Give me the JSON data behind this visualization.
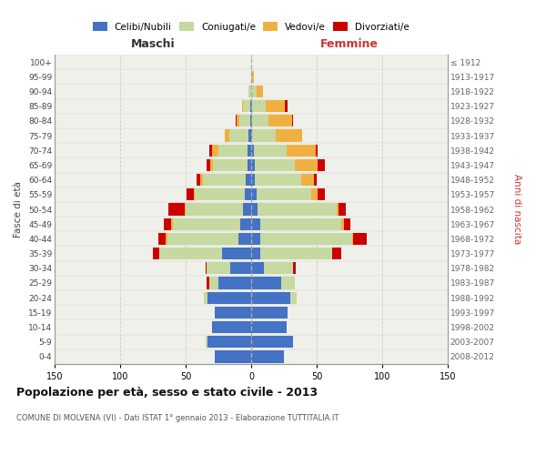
{
  "age_groups": [
    "0-4",
    "5-9",
    "10-14",
    "15-19",
    "20-24",
    "25-29",
    "30-34",
    "35-39",
    "40-44",
    "45-49",
    "50-54",
    "55-59",
    "60-64",
    "65-69",
    "70-74",
    "75-79",
    "80-84",
    "85-89",
    "90-94",
    "95-99",
    "100+"
  ],
  "birth_years": [
    "2008-2012",
    "2003-2007",
    "1998-2002",
    "1993-1997",
    "1988-1992",
    "1983-1987",
    "1978-1982",
    "1973-1977",
    "1968-1972",
    "1963-1967",
    "1958-1962",
    "1953-1957",
    "1948-1952",
    "1943-1947",
    "1938-1942",
    "1933-1937",
    "1928-1932",
    "1923-1927",
    "1918-1922",
    "1913-1917",
    "≤ 1912"
  ],
  "male_celibi": [
    28,
    33,
    30,
    28,
    33,
    25,
    16,
    22,
    10,
    8,
    6,
    5,
    4,
    3,
    3,
    2,
    1,
    1,
    0,
    0,
    0
  ],
  "male_coniugati": [
    0,
    2,
    0,
    0,
    3,
    7,
    18,
    48,
    54,
    52,
    44,
    38,
    33,
    26,
    22,
    15,
    8,
    5,
    2,
    0,
    0
  ],
  "male_vedovi": [
    0,
    0,
    0,
    0,
    0,
    0,
    0,
    0,
    1,
    1,
    1,
    1,
    2,
    2,
    5,
    3,
    2,
    1,
    0,
    0,
    0
  ],
  "male_divorziati": [
    0,
    0,
    0,
    0,
    0,
    2,
    1,
    5,
    6,
    6,
    12,
    5,
    3,
    3,
    2,
    0,
    1,
    0,
    0,
    0,
    0
  ],
  "female_nubili": [
    25,
    32,
    27,
    28,
    30,
    23,
    10,
    7,
    7,
    7,
    5,
    4,
    3,
    3,
    2,
    1,
    1,
    1,
    0,
    0,
    0
  ],
  "female_coniugate": [
    0,
    0,
    0,
    0,
    5,
    10,
    22,
    55,
    70,
    62,
    60,
    42,
    35,
    30,
    25,
    18,
    12,
    10,
    4,
    1,
    0
  ],
  "female_vedove": [
    0,
    0,
    0,
    0,
    0,
    0,
    0,
    0,
    1,
    2,
    2,
    5,
    10,
    18,
    22,
    20,
    18,
    15,
    5,
    1,
    0
  ],
  "female_divorziate": [
    0,
    0,
    0,
    0,
    0,
    0,
    2,
    7,
    10,
    5,
    5,
    5,
    2,
    5,
    2,
    0,
    1,
    2,
    0,
    0,
    0
  ],
  "color_celibi": "#4472c4",
  "color_coniugati": "#c5d9a0",
  "color_vedovi": "#f0b040",
  "color_divorziati": "#cc0000",
  "title": "Popolazione per età, sesso e stato civile - 2013",
  "subtitle": "COMUNE DI MOLVENA (VI) - Dati ISTAT 1° gennaio 2013 - Elaborazione TUTTITALIA.IT",
  "label_maschi": "Maschi",
  "label_femmine": "Femmine",
  "label_fasce": "Fasce di età",
  "label_anni": "Anni di nascita",
  "legend_labels": [
    "Celibi/Nubili",
    "Coniugati/e",
    "Vedovi/e",
    "Divorziati/e"
  ],
  "xlim": 150
}
